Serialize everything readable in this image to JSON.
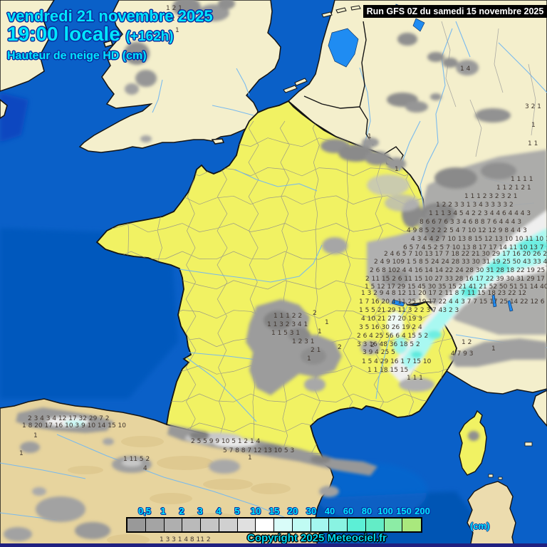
{
  "header": {
    "date_line": "vendredi 21 novembre 2025",
    "time_line": "19:00 locale",
    "time_offset": "(+162h)",
    "variable_line": "Hauteur de neige HD (cm)"
  },
  "run_banner": {
    "text": "Run GFS 0Z du samedi 15 novembre 2025"
  },
  "copyright": "Copyright 2025 Meteociel.fr",
  "legend": {
    "unit": "(cm)",
    "labels": [
      "0,5",
      "1",
      "2",
      "3",
      "4",
      "5",
      "10",
      "15",
      "20",
      "30",
      "40",
      "60",
      "80",
      "100",
      "150",
      "200"
    ],
    "colors": [
      "#999999",
      "#a4a4a4",
      "#afafaf",
      "#bababa",
      "#c5c5c5",
      "#d0d0d0",
      "#e0e0e0",
      "#ffffff",
      "#d9fcf9",
      "#c0fbf3",
      "#a4f7ef",
      "#89f3e2",
      "#5cefd6",
      "#63ecc6",
      "#8ceca5",
      "#a9e87d"
    ]
  },
  "colors": {
    "sea": "#0a60c8",
    "sea_deep": "#0659bd",
    "france": "#f1f263",
    "land_cream": "#f4efcc",
    "spain_tan": "#e7d49e",
    "lake_blue": "#1f8cf2",
    "river": "#74b8f0",
    "mountain_gray": "#9a9a9a",
    "snow_cyan": "#a4f7ef",
    "header_text": "#00e6ff",
    "header_outline": "#0a2d9e",
    "banner_bg": "#000000",
    "banner_text": "#ffffff",
    "bottom_bar": "#202080"
  },
  "snow_values": [
    [
      233,
      14,
      "1 2 1"
    ],
    [
      240,
      29,
      "2 1"
    ],
    [
      246,
      45,
      "1"
    ],
    [
      646,
      99,
      "1 4"
    ],
    [
      516,
      194,
      "1"
    ],
    [
      554,
      240,
      "1"
    ],
    [
      737,
      152,
      "3 2 1"
    ],
    [
      746,
      178,
      "1"
    ],
    [
      741,
      204,
      "1 1"
    ],
    [
      717,
      254,
      "1 1 1 1"
    ],
    [
      697,
      266,
      "1 1 2 1 2 1"
    ],
    [
      652,
      278,
      "1  1 1 2 3 2 3 2 1"
    ],
    [
      612,
      290,
      "1 2  2 3 3 1  3 4 3 3 3 3 2"
    ],
    [
      602,
      302,
      "1 1 1 3 4 5 4 2 2 3 4 4 6 4 4 4 3"
    ],
    [
      589,
      314,
      "8 6 6 7 6 3 3 4 6 8 8 7 6 4 4 4 3"
    ],
    [
      571,
      326,
      "4 9 8 5 2 2 2 5 4 7 10 12 12 9 8 4 4 3"
    ],
    [
      577,
      338,
      "4 3 4 4 2 7 10 13 8 15 12 13 10 10 11 10 13 7"
    ],
    [
      566,
      350,
      "6 5 7 4 5 2 5 7 10 13 8 17 17 14 11 10 13 7"
    ],
    [
      539,
      359,
      "2 4 6 5 7 10 13 17 7 18 22 21 30 29 17 16 20 26 26 34 25"
    ],
    [
      525,
      370,
      "2 4 9 109  1 5 8 5 24 24 28 33 30 31 19 25 50 43 33 48 14"
    ],
    [
      519,
      382,
      "2 6 8 102  4 4 16 14 14 22 24 28 30 31 28 18 22 19 25 24 20 16"
    ],
    [
      513,
      394,
      "2 11 15  2 6 11 15 10 27 33 28 16 17 22 39 30 31 29 17 41 53 38 31"
    ],
    [
      512,
      405,
      "1 5  12 17 29 15 45 30 35 15 21 41 21 52 50 51 51 14 40 38 20 9"
    ],
    [
      507,
      414,
      "1 3  2 9  4 8 12 11 20 17 2  11 8 7 11 15 18 23 22 12"
    ],
    [
      504,
      426,
      "1 7  16 20 4 11 25 19 17 22 4  4 3  7 7 15 17 25 14 22 12 6"
    ],
    [
      504,
      438,
      "1 5 5  21 29 11 3  2 2 3  7 43 2 3"
    ],
    [
      507,
      450,
      "4  10 21 27 20 19 3"
    ],
    [
      504,
      462,
      "3 5  16 30 26 19 2  4"
    ],
    [
      501,
      474,
      "2 6 4  25 56 6 4 15 5  2"
    ],
    [
      501,
      486,
      "3 3  16 48 36 18 5  2"
    ],
    [
      648,
      483,
      "1   2"
    ],
    [
      690,
      492,
      "1"
    ],
    [
      633,
      499,
      "4 7 9 3"
    ],
    [
      509,
      497,
      "3  9  4 25 5"
    ],
    [
      508,
      510,
      "1 5  4 29 16 1 7  15 10"
    ],
    [
      516,
      522,
      "1 1  18 15 15"
    ],
    [
      571,
      533,
      "1 1 1"
    ],
    [
      384,
      446,
      "1 1 1 2 2"
    ],
    [
      375,
      458,
      "1 1 3 2 3 4 1"
    ],
    [
      381,
      470,
      "1  1  5 3  1"
    ],
    [
      410,
      482,
      "1 2 3 1"
    ],
    [
      439,
      442,
      "2"
    ],
    [
      456,
      455,
      "1"
    ],
    [
      446,
      468,
      "1"
    ],
    [
      436,
      494,
      "2 1"
    ],
    [
      431,
      506,
      "1"
    ],
    [
      474,
      490,
      "2"
    ],
    [
      520,
      487,
      "2"
    ],
    [
      268,
      622,
      "2 5 5 9 9 10 5 1 2 1 4"
    ],
    [
      313,
      635,
      "5 7 8 8 7 12 13 10 5 3"
    ],
    [
      348,
      645,
      "1"
    ],
    [
      39,
      590,
      "2 3 4 3 4 12 17 32 29 7 2"
    ],
    [
      31,
      600,
      "1 8 20 17 16 10 3 9 10 14 15 10"
    ],
    [
      47,
      614,
      "1"
    ],
    [
      27,
      639,
      "1"
    ],
    [
      173,
      647,
      "1 11 5 2"
    ],
    [
      201,
      660,
      "4"
    ],
    [
      224,
      760,
      "1 3 3 1 4 8 11 2"
    ]
  ]
}
